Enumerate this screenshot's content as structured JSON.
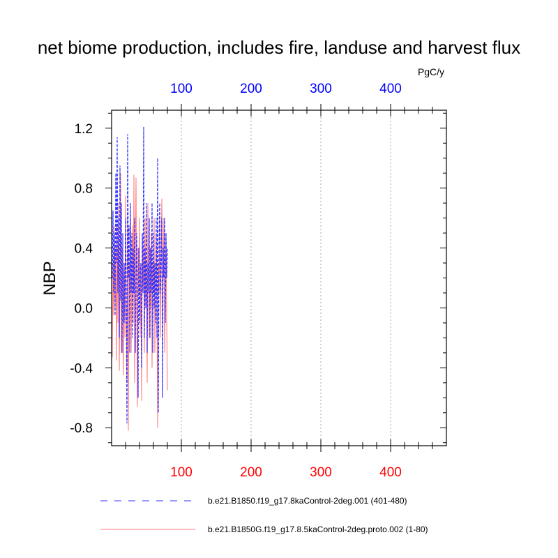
{
  "chart_data": {
    "type": "line",
    "title": "net biome production, includes fire, landuse and harvest flux",
    "units": "PgC/y",
    "ylabel": "NBP",
    "xlim": [
      0,
      480
    ],
    "ylim": [
      -0.92,
      1.32
    ],
    "x_ticks": [
      "100",
      "200",
      "300",
      "400"
    ],
    "y_ticks": [
      "1.2",
      "0.8",
      "0.4",
      "0.0",
      "-0.4",
      "-0.8"
    ],
    "grid": "vertical dotted at major x ticks",
    "colors": {
      "top_axis_labels": "#0000ff",
      "bottom_axis_labels": "#ff0000",
      "series_1": "#3333ff",
      "series_2": "#ff7777"
    },
    "series": [
      {
        "name": "b.e21.B1850.f19_g17.8kaControl-2deg.001 (401-480)",
        "style": "dashed",
        "color": "#3333ff",
        "x": [
          1,
          2,
          3,
          4,
          5,
          6,
          7,
          8,
          9,
          10,
          11,
          12,
          13,
          14,
          15,
          16,
          17,
          18,
          19,
          20,
          21,
          22,
          23,
          24,
          25,
          26,
          27,
          28,
          29,
          30,
          31,
          32,
          33,
          34,
          35,
          36,
          37,
          38,
          39,
          40,
          41,
          42,
          43,
          44,
          45,
          46,
          47,
          48,
          49,
          50,
          51,
          52,
          53,
          54,
          55,
          56,
          57,
          58,
          59,
          60,
          61,
          62,
          63,
          64,
          65,
          66,
          67,
          68,
          69,
          70,
          71,
          72,
          73,
          74,
          75,
          76,
          77,
          78,
          79,
          80
        ],
        "values": [
          0.2,
          0.65,
          0.1,
          0.5,
          -0.05,
          0.9,
          0.3,
          1.14,
          0.1,
          0.6,
          -0.2,
          0.95,
          0.05,
          0.7,
          -0.3,
          0.5,
          -0.1,
          0.3,
          -0.1,
          0.6,
          0.1,
          -0.77,
          1.16,
          0.2,
          0.55,
          -0.3,
          0.7,
          0.1,
          0.5,
          -0.2,
          0.4,
          0.1,
          0.6,
          -0.3,
          0.2,
          0.5,
          0.0,
          -0.6,
          0.4,
          -0.1,
          0.2,
          0.3,
          -0.4,
          0.5,
          0.1,
          1.21,
          -0.2,
          0.4,
          0.0,
          0.7,
          -0.3,
          0.3,
          0.1,
          0.6,
          -0.2,
          0.4,
          0.1,
          0.7,
          -0.3,
          0.5,
          0.0,
          0.3,
          -0.1,
          0.6,
          -0.2,
          1.0,
          -0.7,
          0.4,
          0.7,
          0.1,
          0.3,
          0.6,
          -0.6,
          0.4,
          0.2,
          0.6,
          -0.1,
          0.5,
          0.2,
          0.4
        ]
      },
      {
        "name": "b.e21.B1850G.f19_g17.8.5kaControl-2deg.proto.002 (1-80)",
        "style": "solid",
        "color": "#ff7777",
        "x": [
          1,
          2,
          3,
          4,
          5,
          6,
          7,
          8,
          9,
          10,
          11,
          12,
          13,
          14,
          15,
          16,
          17,
          18,
          19,
          20,
          21,
          22,
          23,
          24,
          25,
          26,
          27,
          28,
          29,
          30,
          31,
          32,
          33,
          34,
          35,
          36,
          37,
          38,
          39,
          40,
          41,
          42,
          43,
          44,
          45,
          46,
          47,
          48,
          49,
          50,
          51,
          52,
          53,
          54,
          55,
          56,
          57,
          58,
          59,
          60,
          61,
          62,
          63,
          64,
          65,
          66,
          67,
          68,
          69,
          70,
          71,
          72,
          73,
          74,
          75,
          76,
          77,
          78,
          79,
          80
        ],
        "values": [
          -0.33,
          0.3,
          -0.05,
          0.55,
          0.0,
          0.4,
          -0.35,
          0.55,
          -0.1,
          0.7,
          -0.42,
          0.2,
          0.9,
          -0.3,
          0.4,
          0.1,
          -0.45,
          0.3,
          -0.2,
          0.75,
          0.0,
          -0.5,
          0.6,
          -0.82,
          0.3,
          0.1,
          0.65,
          -0.3,
          0.2,
          0.55,
          -0.1,
          0.89,
          -0.5,
          0.3,
          0.87,
          0.0,
          -0.66,
          0.4,
          0.1,
          0.6,
          -0.2,
          0.3,
          -0.62,
          0.5,
          0.1,
          0.4,
          -0.3,
          0.6,
          0.0,
          0.3,
          -0.5,
          0.7,
          0.1,
          -0.2,
          0.4,
          0.0,
          0.5,
          -0.4,
          0.3,
          0.1,
          0.6,
          -0.3,
          0.2,
          0.5,
          0.0,
          -0.8,
          0.3,
          0.1,
          0.6,
          -0.2,
          0.4,
          0.73,
          -0.1,
          0.3,
          0.6,
          -0.3,
          0.2,
          0.5,
          -0.1,
          -0.55
        ]
      }
    ]
  }
}
